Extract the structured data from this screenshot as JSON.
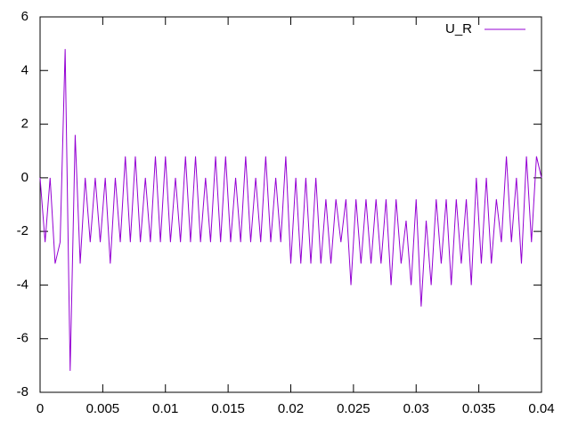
{
  "chart_data": {
    "type": "line",
    "x": [
      0,
      0.0004,
      0.0008,
      0.0012,
      0.0016,
      0.002,
      0.0024,
      0.0028,
      0.0032,
      0.0036,
      0.004,
      0.0044,
      0.0048,
      0.0052,
      0.0056,
      0.006,
      0.0064,
      0.0068,
      0.0072,
      0.0076,
      0.008,
      0.0084,
      0.0088,
      0.0092,
      0.0096,
      0.01,
      0.0104,
      0.0108,
      0.0112,
      0.0116,
      0.012,
      0.0124,
      0.0128,
      0.0132,
      0.0136,
      0.014,
      0.0144,
      0.0148,
      0.0152,
      0.0156,
      0.016,
      0.0164,
      0.0168,
      0.0172,
      0.0176,
      0.018,
      0.0184,
      0.0188,
      0.0192,
      0.0196,
      0.02,
      0.0204,
      0.0208,
      0.0212,
      0.0216,
      0.022,
      0.0224,
      0.0228,
      0.0232,
      0.0236,
      0.024,
      0.0244,
      0.0248,
      0.0252,
      0.0256,
      0.026,
      0.0264,
      0.0268,
      0.0272,
      0.0276,
      0.028,
      0.0284,
      0.0288,
      0.0292,
      0.0296,
      0.03,
      0.0304,
      0.0308,
      0.0312,
      0.0316,
      0.032,
      0.0324,
      0.0328,
      0.0332,
      0.0336,
      0.034,
      0.0344,
      0.0348,
      0.0352,
      0.0356,
      0.036,
      0.0364,
      0.0368,
      0.0372,
      0.0376,
      0.038,
      0.0384,
      0.0388,
      0.0392,
      0.0396,
      0.04
    ],
    "series": [
      {
        "name": "U_R",
        "color": "#9400d3",
        "values": [
          0,
          -2.4,
          0,
          -3.2,
          -2.4,
          4.8,
          -7.2,
          1.6,
          -3.2,
          0,
          -2.4,
          0,
          -2.4,
          0,
          -3.2,
          0,
          -2.4,
          0.8,
          -2.4,
          0.8,
          -2.4,
          0,
          -2.4,
          0.8,
          -2.4,
          0.8,
          -2.4,
          0,
          -2.4,
          0.8,
          -2.4,
          0.8,
          -2.4,
          0,
          -2.4,
          0.8,
          -2.4,
          0.8,
          -2.4,
          0,
          -2.4,
          0.8,
          -2.4,
          0,
          -2.4,
          0.8,
          -2.4,
          0,
          -2.4,
          0.8,
          -3.2,
          0,
          -3.2,
          0,
          -3.2,
          0,
          -3.2,
          -0.8,
          -3.2,
          -0.8,
          -2.4,
          -0.8,
          -4,
          -0.8,
          -3.2,
          -0.8,
          -3.2,
          -0.8,
          -3.2,
          -0.8,
          -4,
          -0.8,
          -3.2,
          -1.6,
          -4,
          -0.8,
          -4.8,
          -1.6,
          -4,
          -0.8,
          -3.2,
          -0.8,
          -4,
          -0.8,
          -3.2,
          -0.8,
          -4,
          0,
          -3.2,
          0,
          -3.2,
          -0.8,
          -2.4,
          0.8,
          -2.4,
          0,
          -3.2,
          0.8,
          -2.4,
          0.8,
          0
        ]
      }
    ],
    "xlim": [
      0,
      0.04
    ],
    "xticks": [
      0,
      0.005,
      0.01,
      0.015,
      0.02,
      0.025,
      0.03,
      0.035,
      0.04
    ],
    "ylim": [
      -8,
      6
    ],
    "yticks": [
      -8,
      -6,
      -4,
      -2,
      0,
      2,
      4,
      6
    ],
    "grid": false,
    "legend": "top-right"
  }
}
